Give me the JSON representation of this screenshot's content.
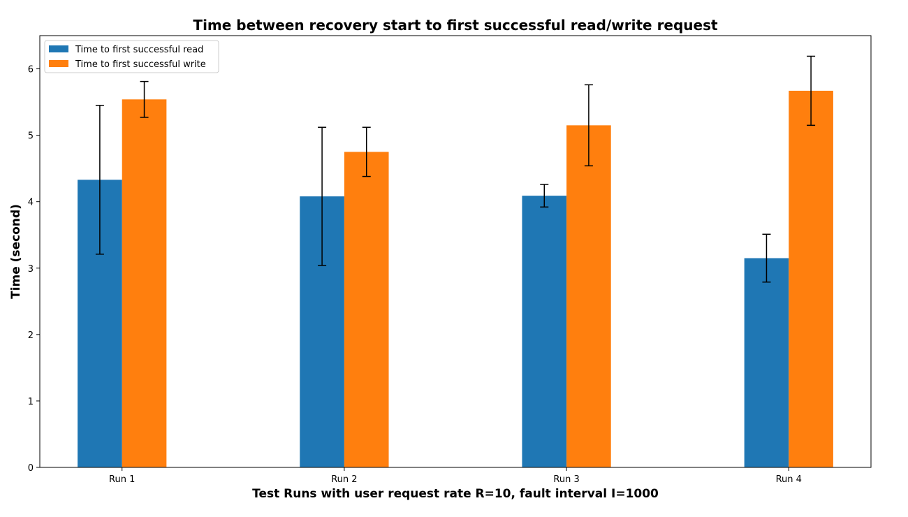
{
  "chart_data": {
    "type": "bar",
    "title": "Time between recovery start to first successful read/write request",
    "xlabel": "Test Runs with user request rate R=10, fault interval I=1000",
    "ylabel": "Time (second)",
    "categories": [
      "Run 1",
      "Run 2",
      "Run 3",
      "Run 4"
    ],
    "series": [
      {
        "name": "Time to first successful read",
        "color": "#1f77b4",
        "values": [
          4.33,
          4.08,
          4.09,
          3.15
        ],
        "error": [
          1.12,
          1.04,
          0.17,
          0.36
        ]
      },
      {
        "name": "Time to first successful write",
        "color": "#ff7f0e",
        "values": [
          5.54,
          4.75,
          5.15,
          5.67
        ],
        "error": [
          0.27,
          0.37,
          0.61,
          0.52
        ]
      }
    ],
    "ylim": [
      0,
      6.5
    ],
    "yticks": [
      "0",
      "1",
      "2",
      "3",
      "4",
      "5",
      "6"
    ],
    "grid": false,
    "legend_position": "top-left"
  }
}
